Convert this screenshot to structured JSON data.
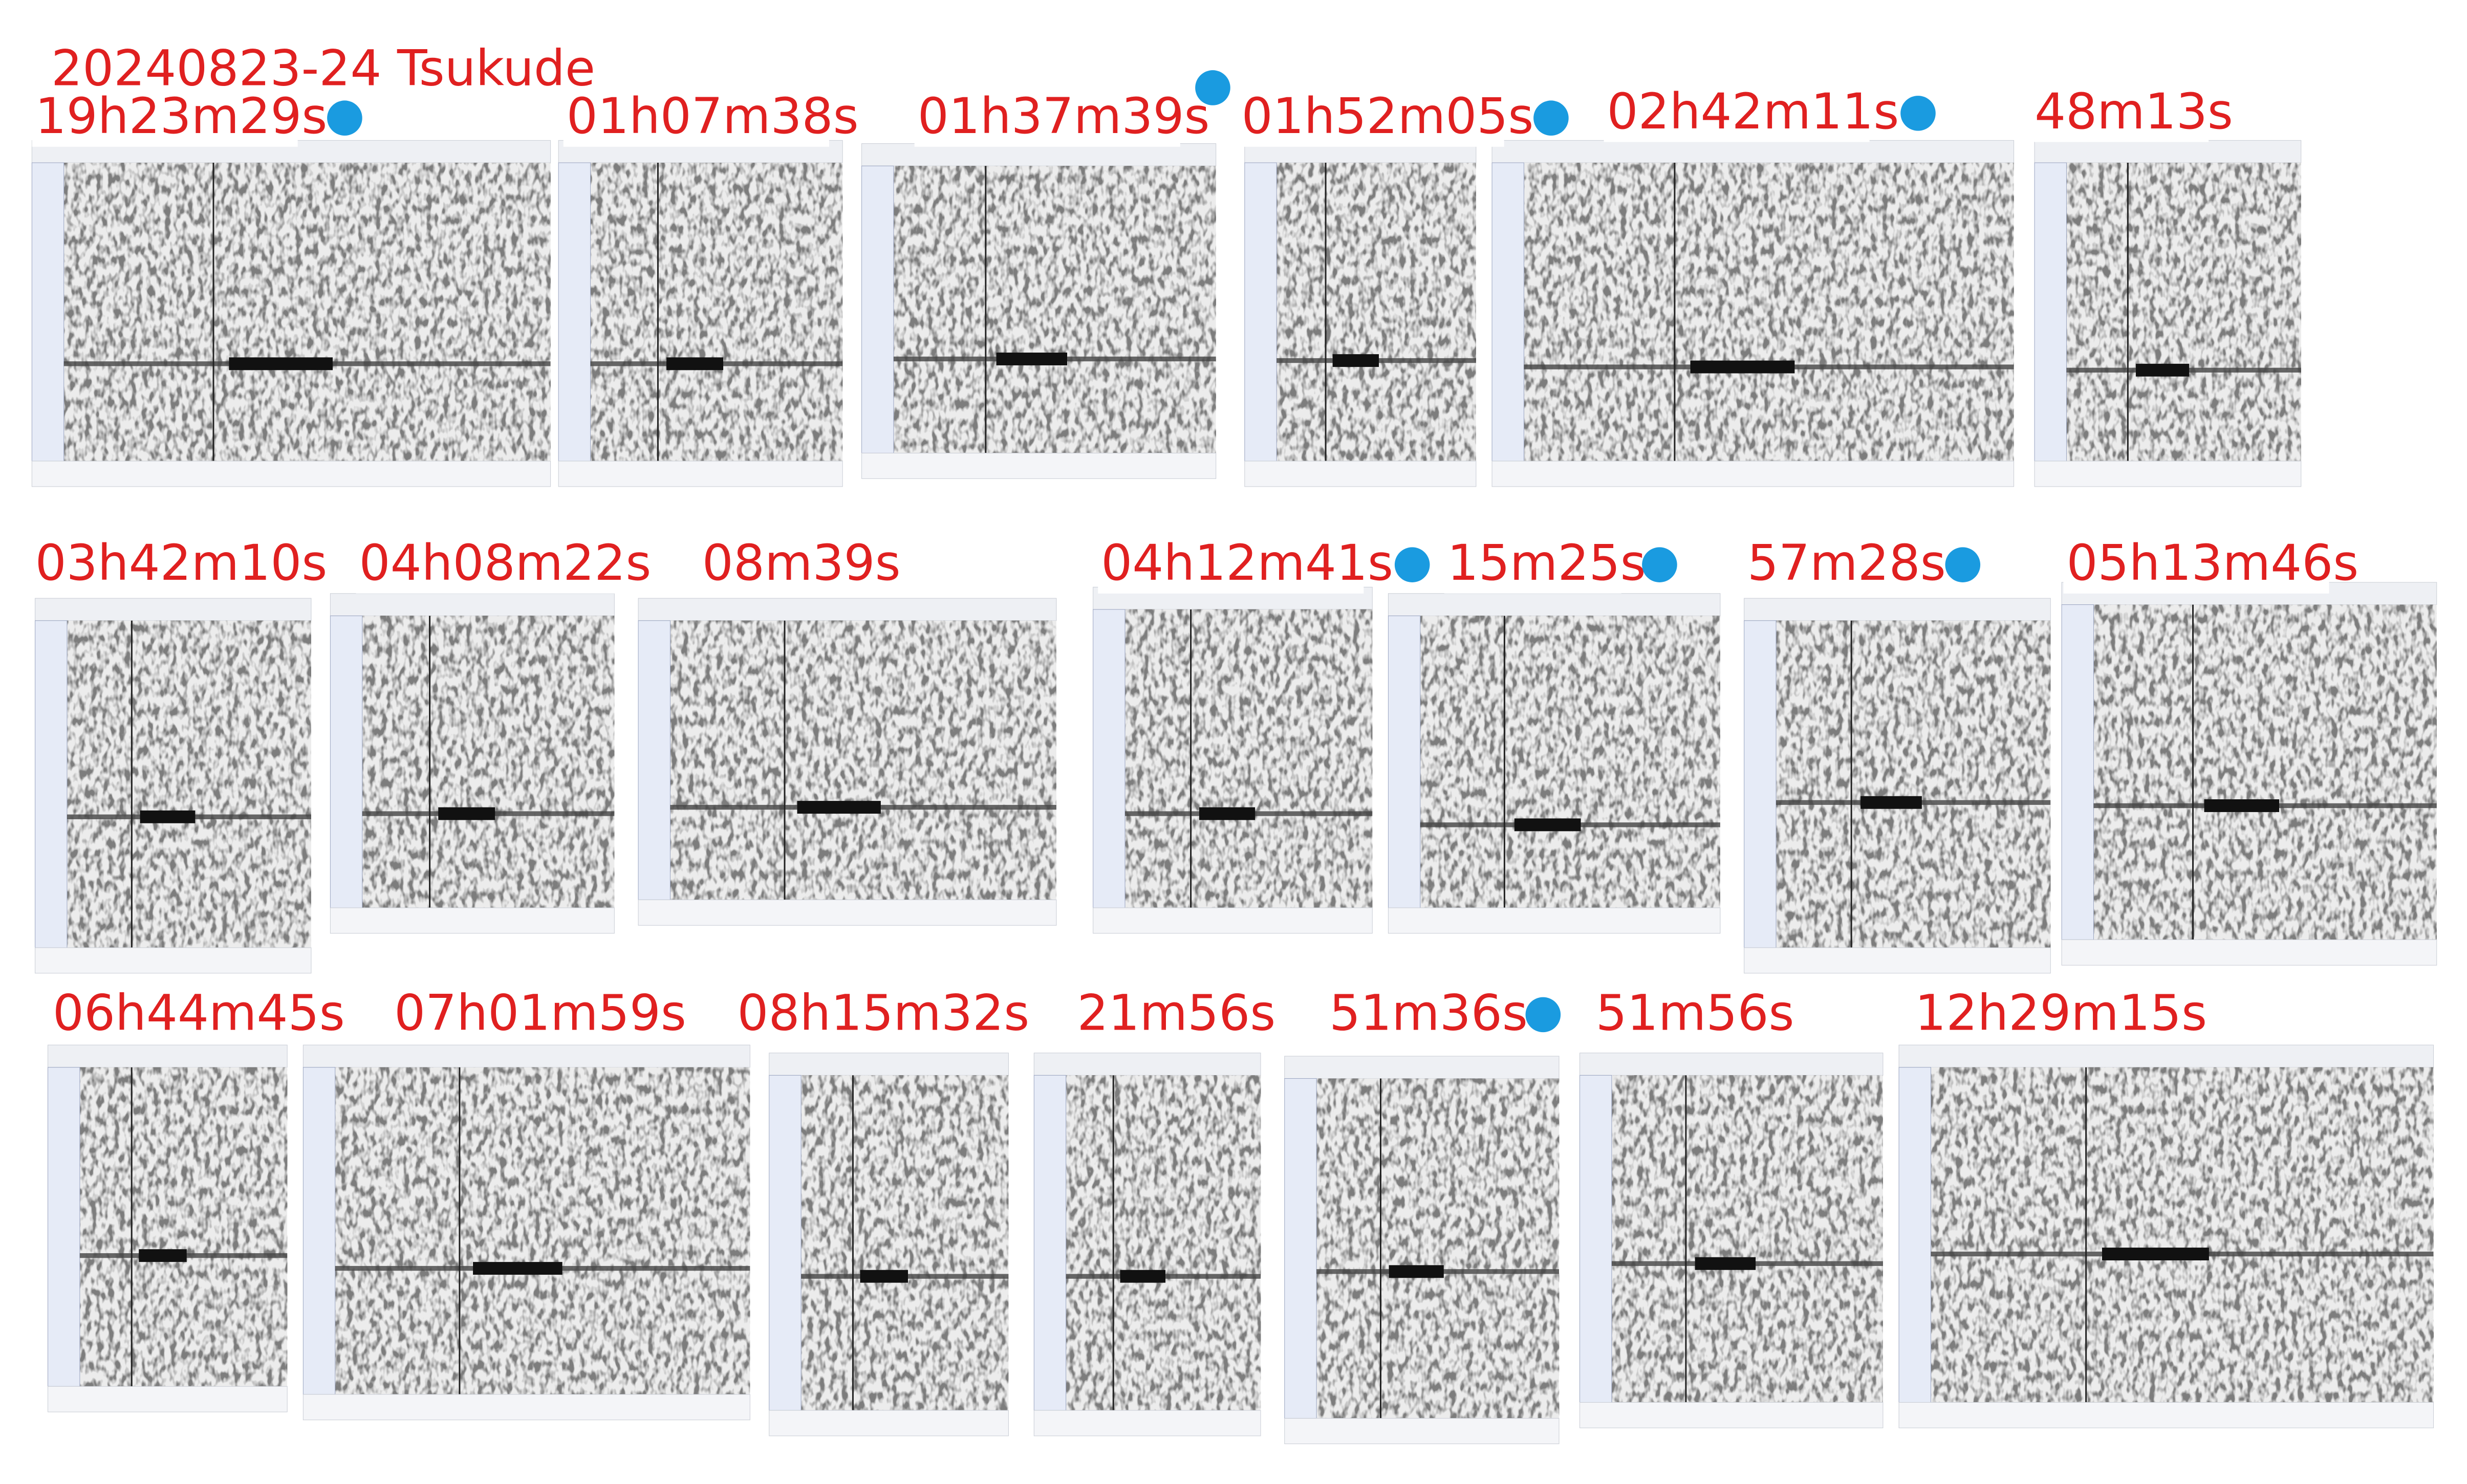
{
  "header": {
    "title": "20240823-24  Tsukude"
  },
  "labels": [
    {
      "text": "19h23m29s",
      "dot": true
    },
    {
      "text": "01h07m38s",
      "dot": false
    },
    {
      "text": "01h37m39s",
      "dot": true
    },
    {
      "text": "01h52m05s",
      "dot": true
    },
    {
      "text": "02h42m11s",
      "dot": true
    },
    {
      "text": "48m13s",
      "dot": false
    },
    {
      "text": "03h42m10s",
      "dot": false
    },
    {
      "text": "04h08m22s",
      "dot": false
    },
    {
      "text": "08m39s",
      "dot": false
    },
    {
      "text": "04h12m41s",
      "dot": true
    },
    {
      "text": "15m25s",
      "dot": true
    },
    {
      "text": "57m28s",
      "dot": true
    },
    {
      "text": "05h13m46s",
      "dot": false
    },
    {
      "text": "06h44m45s",
      "dot": false
    },
    {
      "text": "07h01m59s",
      "dot": false
    },
    {
      "text": "08h15m32s",
      "dot": false
    },
    {
      "text": "21m56s",
      "dot": false
    },
    {
      "text": "51m36s",
      "dot": true
    },
    {
      "text": "51m56s",
      "dot": false
    },
    {
      "text": "12h29m15s",
      "dot": false
    }
  ]
}
